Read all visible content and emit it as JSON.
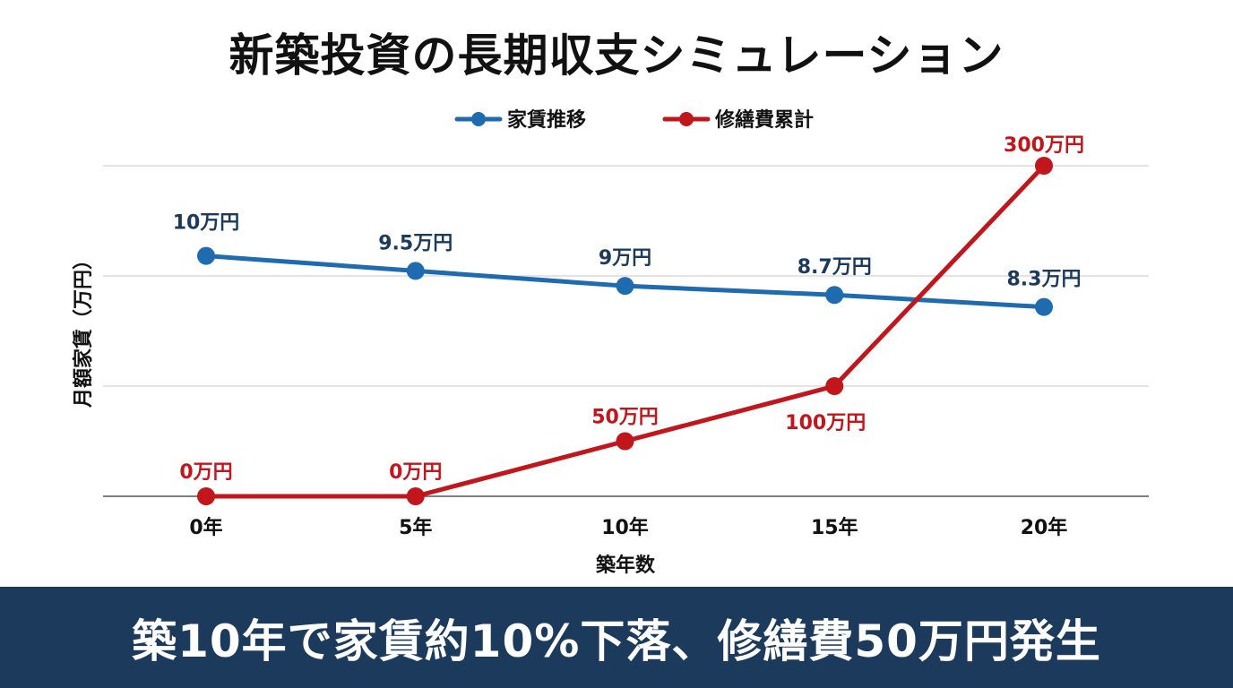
{
  "chart_data": {
    "type": "line",
    "title": "新築投資の長期収支シミュレーション",
    "xlabel": "築年数",
    "ylabel": "月額家賃（万円）",
    "categories": [
      "0年",
      "5年",
      "10年",
      "15年",
      "20年"
    ],
    "grid": true,
    "legend_position": "top",
    "series": [
      {
        "name": "家賃推移",
        "color": "#1f6bb0",
        "values": [
          10,
          9.5,
          9,
          8.7,
          8.3
        ],
        "labels": [
          "10万円",
          "9.5万円",
          "9万円",
          "8.7万円",
          "8.3万円"
        ],
        "ylim": [
          2,
          13
        ]
      },
      {
        "name": "修繕費累計",
        "color": "#c0161c",
        "values": [
          0,
          0,
          50,
          100,
          300
        ],
        "labels": [
          "0万円",
          "0万円",
          "50万円",
          "100万円",
          "300万円"
        ],
        "ylim": [
          0,
          300
        ]
      }
    ]
  },
  "banner": {
    "text": "築10年で家賃約10%下落、修繕費50万円発生",
    "color": "#1b3a5c"
  }
}
